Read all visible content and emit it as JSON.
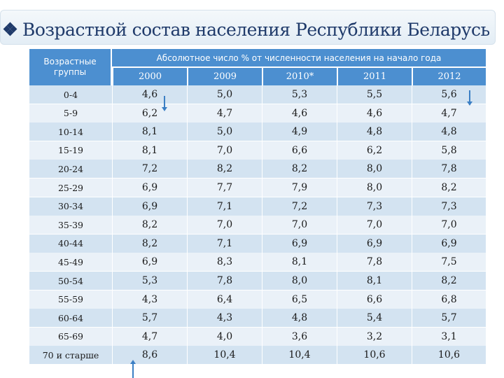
{
  "title": "Возрастной состав населения Республики Беларусь",
  "table": {
    "group_header": "Возрастные группы",
    "super_header": "Абсолютное число % от численности населения на начало года",
    "years": [
      "2000",
      "2009",
      "2010*",
      "2011",
      "2012"
    ],
    "rows": [
      {
        "group": "0-4",
        "values": [
          "4,6",
          "5,0",
          "5,3",
          "5,5",
          "5,6"
        ]
      },
      {
        "group": "5-9",
        "values": [
          "6,2",
          "4,7",
          "4,6",
          "4,6",
          "4,7"
        ]
      },
      {
        "group": "10-14",
        "values": [
          "8,1",
          "5,0",
          "4,9",
          "4,8",
          "4,8"
        ]
      },
      {
        "group": "15-19",
        "values": [
          "8,1",
          "7,0",
          "6,6",
          "6,2",
          "5,8"
        ]
      },
      {
        "group": "20-24",
        "values": [
          "7,2",
          "8,2",
          "8,2",
          "8,0",
          "7,8"
        ]
      },
      {
        "group": "25-29",
        "values": [
          "6,9",
          "7,7",
          "7,9",
          "8,0",
          "8,2"
        ]
      },
      {
        "group": "30-34",
        "values": [
          "6,9",
          "7,1",
          "7,2",
          "7,3",
          "7,3"
        ]
      },
      {
        "group": "35-39",
        "values": [
          "8,2",
          "7,0",
          "7,0",
          "7,0",
          "7,0"
        ]
      },
      {
        "group": "40-44",
        "values": [
          "8,2",
          "7,1",
          "6,9",
          "6,9",
          "6,9"
        ]
      },
      {
        "group": "45-49",
        "values": [
          "6,9",
          "8,3",
          "8,1",
          "7,8",
          "7,5"
        ]
      },
      {
        "group": "50-54",
        "values": [
          "5,3",
          "7,8",
          "8,0",
          "8,1",
          "8,2"
        ]
      },
      {
        "group": "55-59",
        "values": [
          "4,3",
          "6,4",
          "6,5",
          "6,6",
          "6,8"
        ]
      },
      {
        "group": "60-64",
        "values": [
          "5,7",
          "4,3",
          "4,8",
          "5,4",
          "5,7"
        ]
      },
      {
        "group": "65-69",
        "values": [
          "4,7",
          "4,0",
          "3,6",
          "3,2",
          "3,1"
        ]
      },
      {
        "group": "70 и старше",
        "values": [
          "8,6",
          "10,4",
          "10,4",
          "10,6",
          "10,6"
        ]
      }
    ]
  },
  "colors": {
    "header_bg": "#4c8fd0",
    "row_odd": "#d3e3f1",
    "row_even": "#eaf1f8",
    "arrow": "#3b7fc4",
    "title": "#1f3a6a"
  }
}
